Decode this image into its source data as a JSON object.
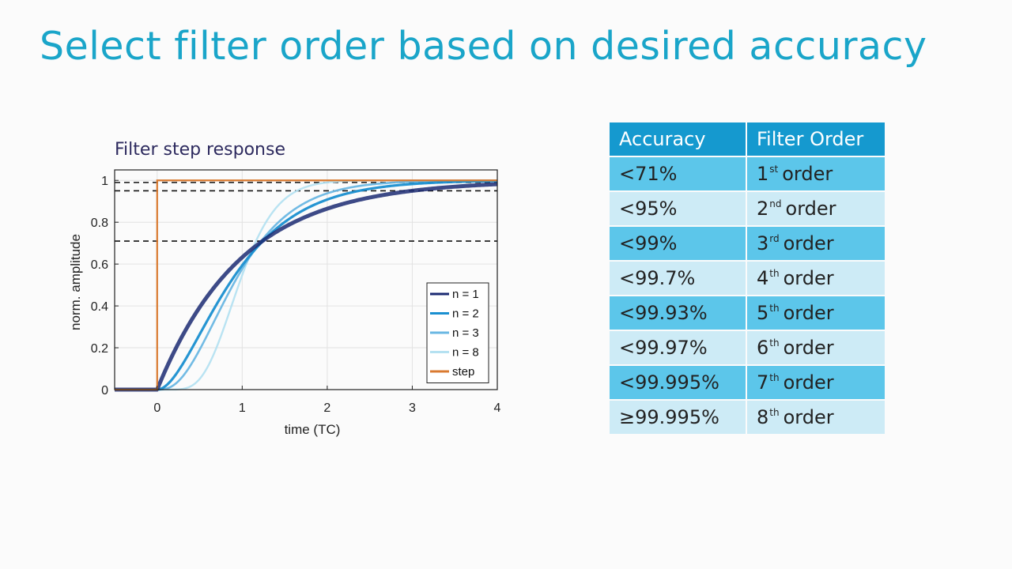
{
  "slide": {
    "title": "Select filter order based on desired accuracy"
  },
  "chart_data": {
    "type": "line",
    "title": "Filter step response",
    "xlabel": "time (TC)",
    "ylabel": "norm. amplitude",
    "xlim": [
      -0.5,
      4
    ],
    "ylim": [
      0,
      1.05
    ],
    "xticks": [
      0,
      1,
      2,
      3,
      4
    ],
    "yticks": [
      0,
      0.2,
      0.4,
      0.6,
      0.8,
      1
    ],
    "ytick_labels": [
      "0",
      "0.2",
      "0.4",
      "0.6",
      "0.8",
      "1"
    ],
    "grid": true,
    "legend_position": "bottom-right",
    "reference_lines": [
      0.71,
      0.95,
      0.99
    ],
    "series": [
      {
        "name": "n = 1",
        "order": 1,
        "color": "#1b2a72"
      },
      {
        "name": "n = 2",
        "order": 2,
        "color": "#1a8fd0"
      },
      {
        "name": "n = 3",
        "order": 3,
        "color": "#6ab7e3"
      },
      {
        "name": "n = 8",
        "order": 8,
        "color": "#b5e1f1"
      },
      {
        "name": "step",
        "order": 0,
        "color": "#d97a30"
      }
    ]
  },
  "table": {
    "headers": [
      "Accuracy",
      "Filter Order"
    ],
    "rows": [
      {
        "accuracy": "<71%",
        "num": "1",
        "suffix": "st",
        "word": "order"
      },
      {
        "accuracy": "<95%",
        "num": "2",
        "suffix": "nd",
        "word": "order"
      },
      {
        "accuracy": "<99%",
        "num": "3",
        "suffix": "rd",
        "word": "order"
      },
      {
        "accuracy": "<99.7%",
        "num": "4",
        "suffix": "th",
        "word": "order"
      },
      {
        "accuracy": "<99.93%",
        "num": "5",
        "suffix": "th",
        "word": "order"
      },
      {
        "accuracy": "<99.97%",
        "num": "6",
        "suffix": "th",
        "word": "order"
      },
      {
        "accuracy": "<99.995%",
        "num": "7",
        "suffix": "th",
        "word": "order"
      },
      {
        "accuracy": "≥99.995%",
        "num": "8",
        "suffix": "th",
        "word": "order"
      }
    ]
  }
}
